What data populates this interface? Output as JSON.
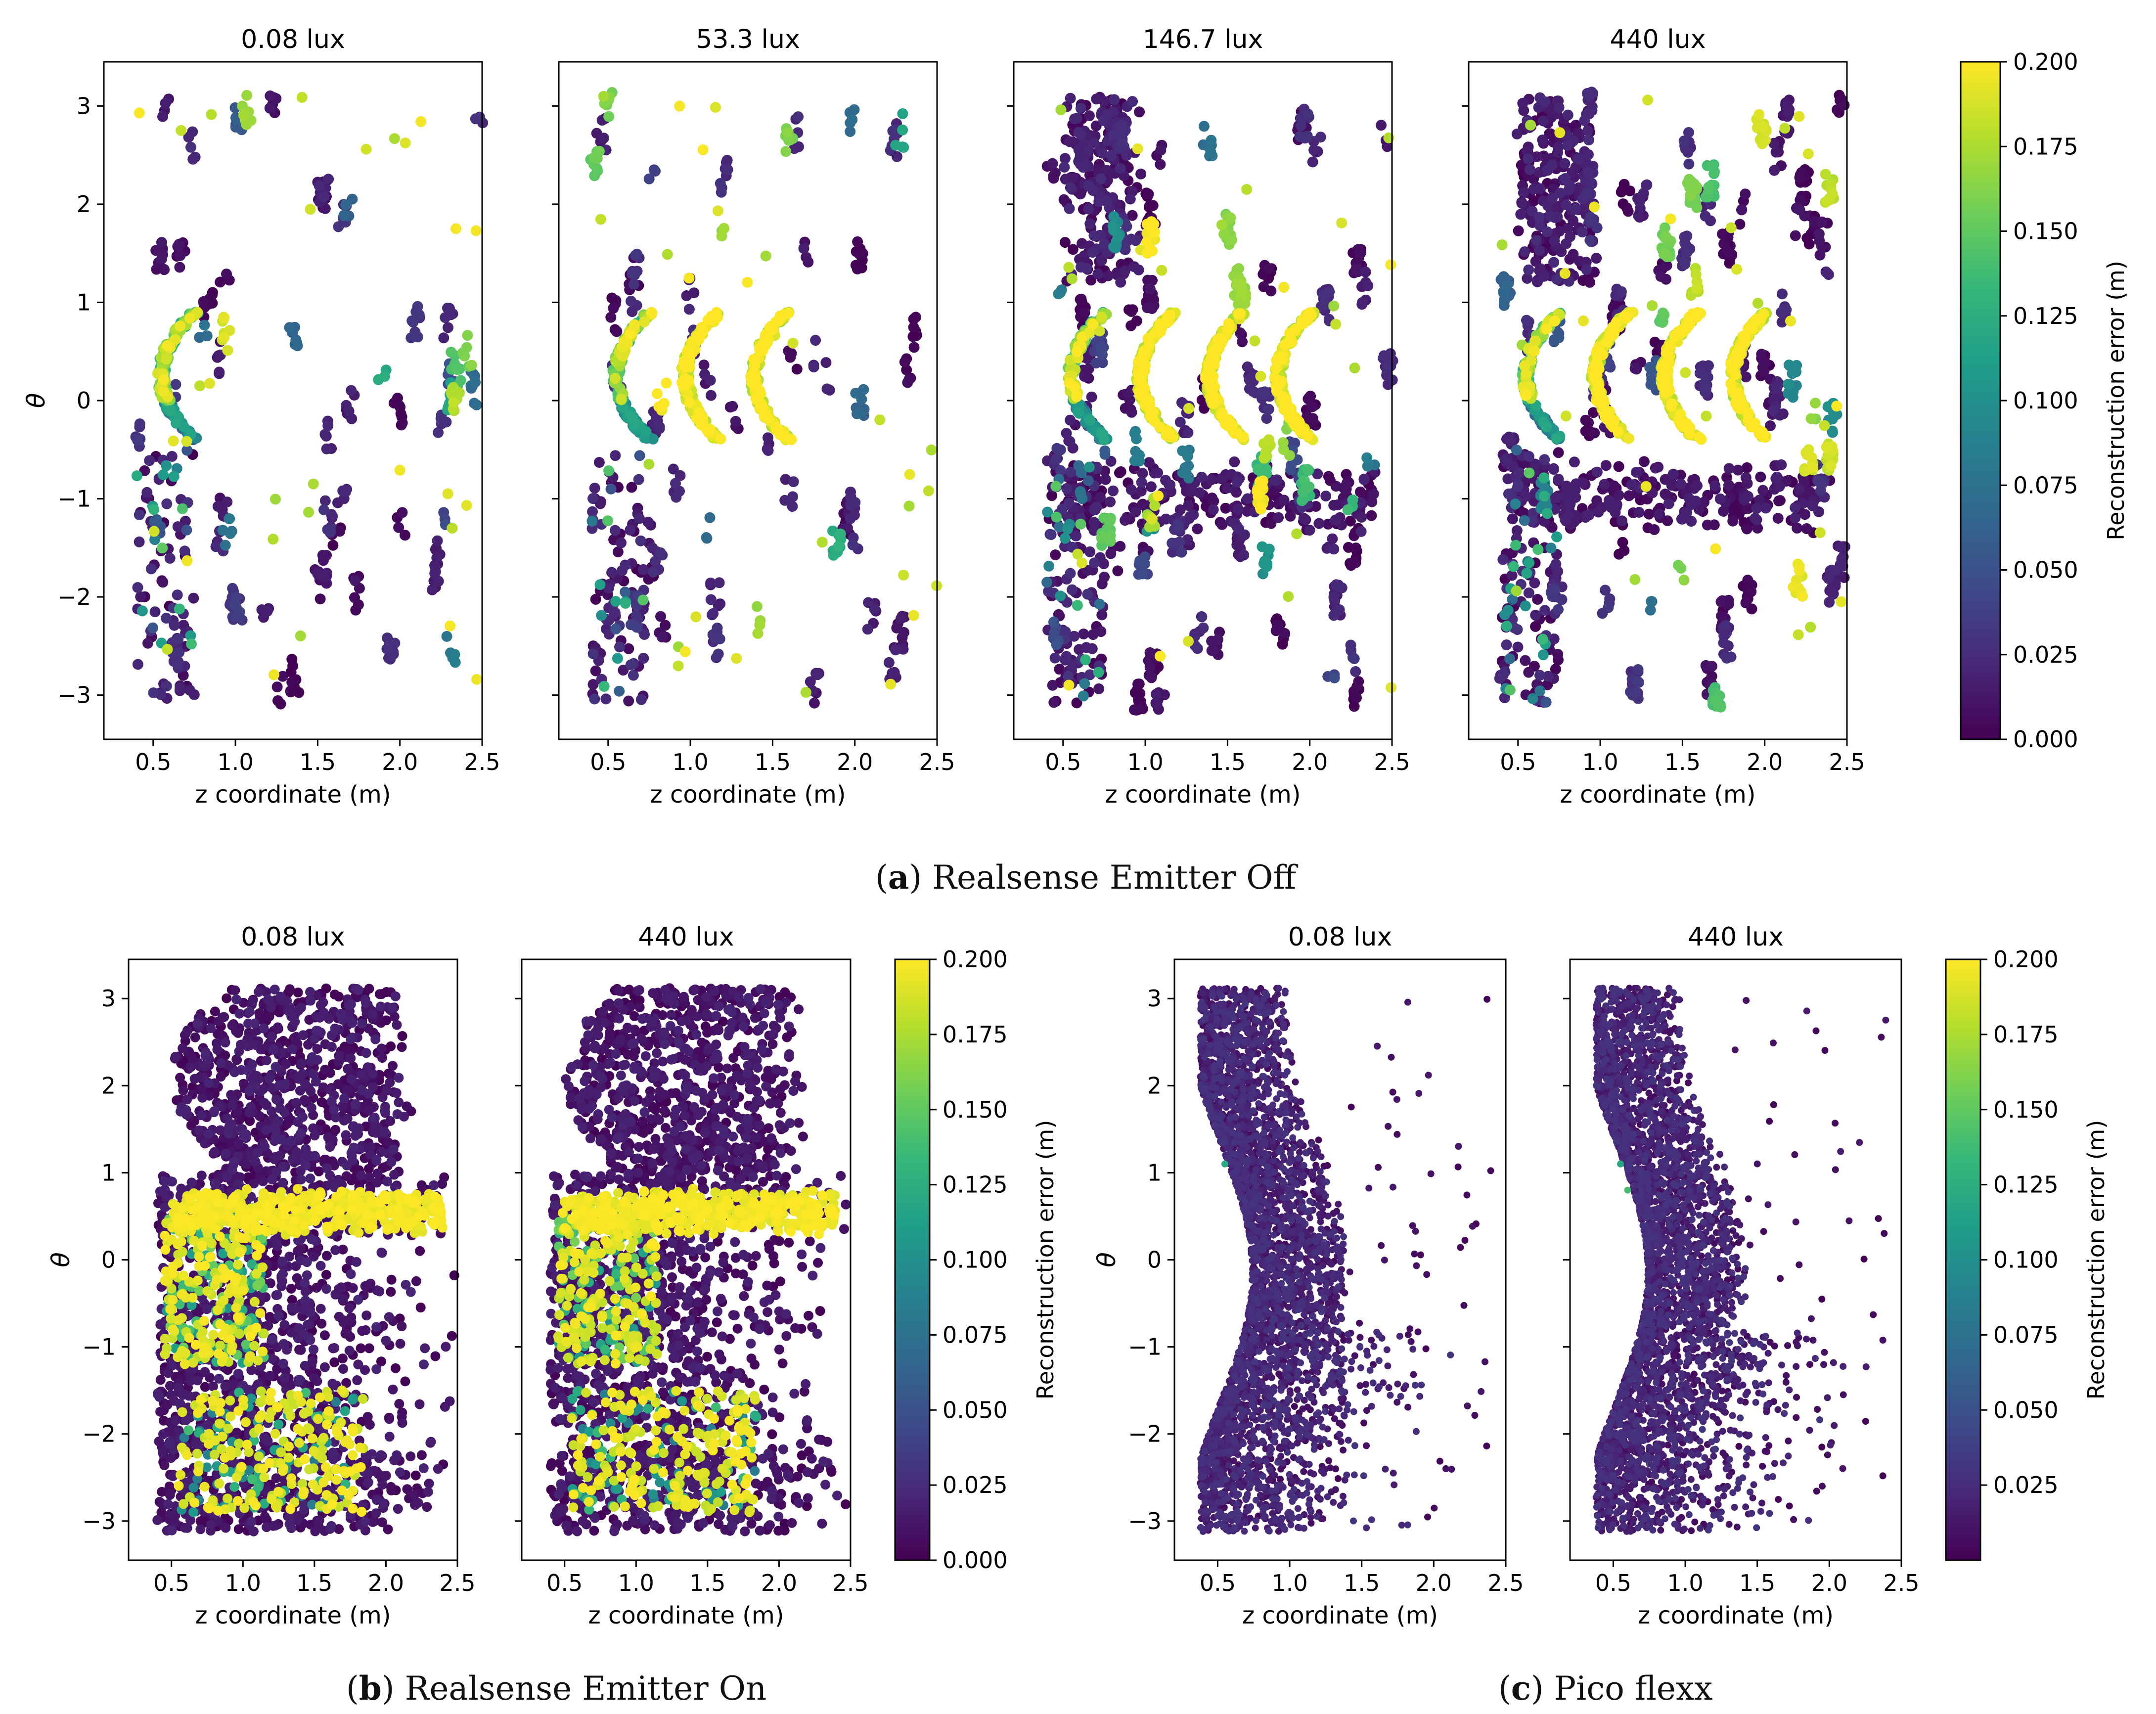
{
  "figure": {
    "captions": [
      {
        "id": "a",
        "letter": "a",
        "text": "Realsense Emitter Off"
      },
      {
        "id": "b",
        "letter": "b",
        "text": "Realsense Emitter On"
      },
      {
        "id": "c",
        "letter": "c",
        "text": "Pico flexx"
      }
    ],
    "colorbar_label": "Reconstruction error (m)",
    "colormap": "viridis",
    "colormap_stops": [
      "#440154",
      "#482878",
      "#3e4a89",
      "#31688e",
      "#26828e",
      "#1f9e89",
      "#35b779",
      "#6ece58",
      "#b5de2b",
      "#fde725"
    ]
  },
  "chart_data": [
    {
      "type": "scatter",
      "group": "a",
      "title": "0.08 lux",
      "xlabel": "z coordinate (m)",
      "ylabel": "θ",
      "xlim": [
        0.2,
        2.5
      ],
      "ylim": [
        -3.45,
        3.45
      ],
      "xticks": [
        "0.5",
        "1.0",
        "1.5",
        "2.0",
        "2.5"
      ],
      "yticks": [
        "−3",
        "−2",
        "−1",
        "0",
        "1",
        "2",
        "3"
      ],
      "color_range": [
        0,
        0.2
      ],
      "pattern": "sparse",
      "arcs": 1,
      "seed": 11
    },
    {
      "type": "scatter",
      "group": "a",
      "title": "53.3 lux",
      "xlabel": "z coordinate (m)",
      "ylabel": "",
      "xlim": [
        0.2,
        2.5
      ],
      "ylim": [
        -3.45,
        3.45
      ],
      "xticks": [
        "0.5",
        "1.0",
        "1.5",
        "2.0",
        "2.5"
      ],
      "yticks": [],
      "color_range": [
        0,
        0.2
      ],
      "pattern": "sparse",
      "arcs": 3,
      "seed": 23
    },
    {
      "type": "scatter",
      "group": "a",
      "title": "146.7 lux",
      "xlabel": "z coordinate (m)",
      "ylabel": "",
      "xlim": [
        0.2,
        2.5
      ],
      "ylim": [
        -3.45,
        3.45
      ],
      "xticks": [
        "0.5",
        "1.0",
        "1.5",
        "2.0",
        "2.5"
      ],
      "yticks": [],
      "color_range": [
        0,
        0.2
      ],
      "pattern": "medium",
      "arcs": 4,
      "seed": 37
    },
    {
      "type": "scatter",
      "group": "a",
      "title": "440 lux",
      "xlabel": "z coordinate (m)",
      "ylabel": "",
      "xlim": [
        0.2,
        2.5
      ],
      "ylim": [
        -3.45,
        3.45
      ],
      "xticks": [
        "0.5",
        "1.0",
        "1.5",
        "2.0",
        "2.5"
      ],
      "yticks": [],
      "color_range": [
        0,
        0.2
      ],
      "pattern": "medium",
      "arcs": 4,
      "seed": 41
    },
    {
      "type": "scatter",
      "group": "b",
      "title": "0.08 lux",
      "xlabel": "z coordinate (m)",
      "ylabel": "θ",
      "xlim": [
        0.2,
        2.5
      ],
      "ylim": [
        -3.45,
        3.45
      ],
      "xticks": [
        "0.5",
        "1.0",
        "1.5",
        "2.0",
        "2.5"
      ],
      "yticks": [
        "−3",
        "−2",
        "−1",
        "0",
        "1",
        "2",
        "3"
      ],
      "color_range": [
        0,
        0.2
      ],
      "pattern": "dense",
      "arcs": 0,
      "seed": 53
    },
    {
      "type": "scatter",
      "group": "b",
      "title": "440 lux",
      "xlabel": "z coordinate (m)",
      "ylabel": "",
      "xlim": [
        0.2,
        2.5
      ],
      "ylim": [
        -3.45,
        3.45
      ],
      "xticks": [
        "0.5",
        "1.0",
        "1.5",
        "2.0",
        "2.5"
      ],
      "yticks": [],
      "color_range": [
        0,
        0.2
      ],
      "pattern": "dense",
      "arcs": 0,
      "seed": 59
    },
    {
      "type": "scatter",
      "group": "c",
      "title": "0.08 lux",
      "xlabel": "z coordinate (m)",
      "ylabel": "θ",
      "xlim": [
        0.2,
        2.5
      ],
      "ylim": [
        -3.45,
        3.45
      ],
      "xticks": [
        "0.5",
        "1.0",
        "1.5",
        "2.0",
        "2.5"
      ],
      "yticks": [
        "−3",
        "−2",
        "−1",
        "0",
        "1",
        "2",
        "3"
      ],
      "color_range": [
        0,
        0.2
      ],
      "pattern": "tof",
      "arcs": 0,
      "seed": 67
    },
    {
      "type": "scatter",
      "group": "c",
      "title": "440 lux",
      "xlabel": "z coordinate (m)",
      "ylabel": "",
      "xlim": [
        0.2,
        2.5
      ],
      "ylim": [
        -3.45,
        3.45
      ],
      "xticks": [
        "0.5",
        "1.0",
        "1.5",
        "2.0",
        "2.5"
      ],
      "yticks": [],
      "color_range": [
        0,
        0.2
      ],
      "pattern": "tof",
      "arcs": 0,
      "seed": 71
    }
  ],
  "colorbars": [
    {
      "group": "a",
      "ticks": [
        "0.000",
        "0.025",
        "0.050",
        "0.075",
        "0.100",
        "0.125",
        "0.150",
        "0.175",
        "0.200"
      ],
      "range": [
        0,
        0.2
      ]
    },
    {
      "group": "b",
      "ticks": [
        "0.000",
        "0.025",
        "0.050",
        "0.075",
        "0.100",
        "0.125",
        "0.150",
        "0.175",
        "0.200"
      ],
      "range": [
        0,
        0.2
      ]
    },
    {
      "group": "c",
      "ticks": [
        "0.025",
        "0.050",
        "0.075",
        "0.100",
        "0.125",
        "0.150",
        "0.175",
        "0.200"
      ],
      "range": [
        0.0,
        0.2
      ]
    }
  ]
}
